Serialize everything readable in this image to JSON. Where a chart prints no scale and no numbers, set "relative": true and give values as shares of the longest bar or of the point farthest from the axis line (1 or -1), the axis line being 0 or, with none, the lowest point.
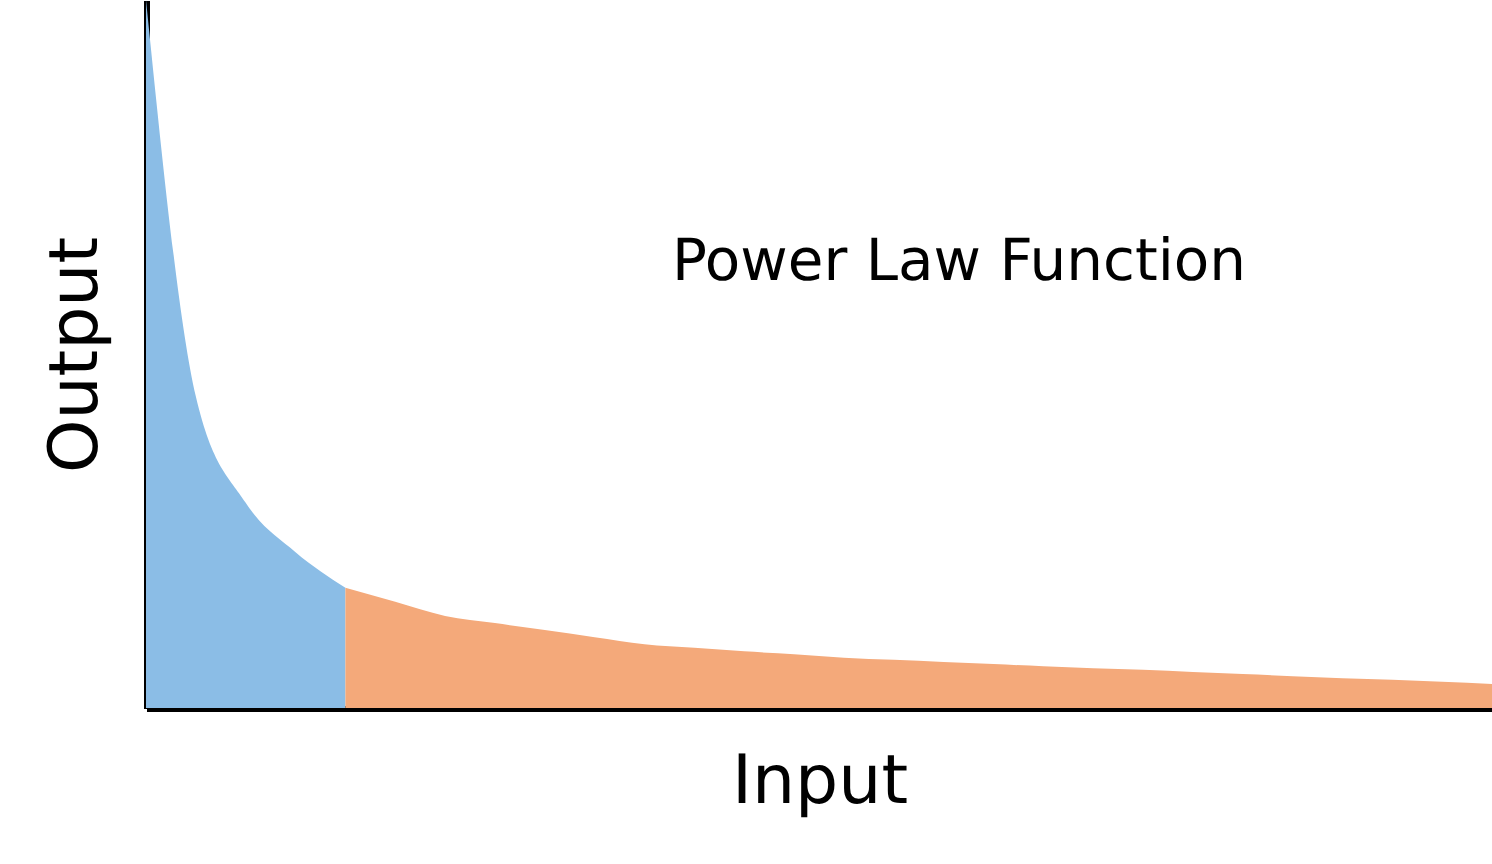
{
  "chart_data": {
    "type": "area",
    "title": "Power Law Function",
    "xlabel": "Input",
    "ylabel": "Output",
    "relative": true,
    "tick_labels": false,
    "categories": [
      null,
      null,
      null,
      null,
      null,
      null,
      null,
      null,
      null,
      null,
      null,
      null,
      null,
      null,
      null,
      null,
      null,
      null,
      null,
      null,
      null,
      null,
      null,
      null,
      null,
      null,
      null,
      null
    ],
    "series": [
      {
        "color": "#8bbde6",
        "values": [
          1,
          0.44,
          0.29,
          0.22,
          0.17,
          null,
          null,
          null,
          null,
          null,
          null,
          null,
          null,
          null,
          null,
          null,
          null,
          null,
          null,
          null,
          null,
          null,
          null,
          null,
          null,
          null,
          null,
          null
        ]
      },
      {
        "color": "#f4a97a",
        "values": [
          null,
          null,
          null,
          null,
          0.17,
          0.15,
          0.13,
          0.12,
          0.11,
          0.1,
          0.09,
          0.085,
          0.08,
          0.076,
          0.071,
          0.068,
          0.065,
          0.062,
          0.059,
          0.056,
          0.054,
          0.051,
          0.048,
          0.045,
          0.042,
          0.04,
          0.037,
          0.034
        ]
      }
    ]
  }
}
